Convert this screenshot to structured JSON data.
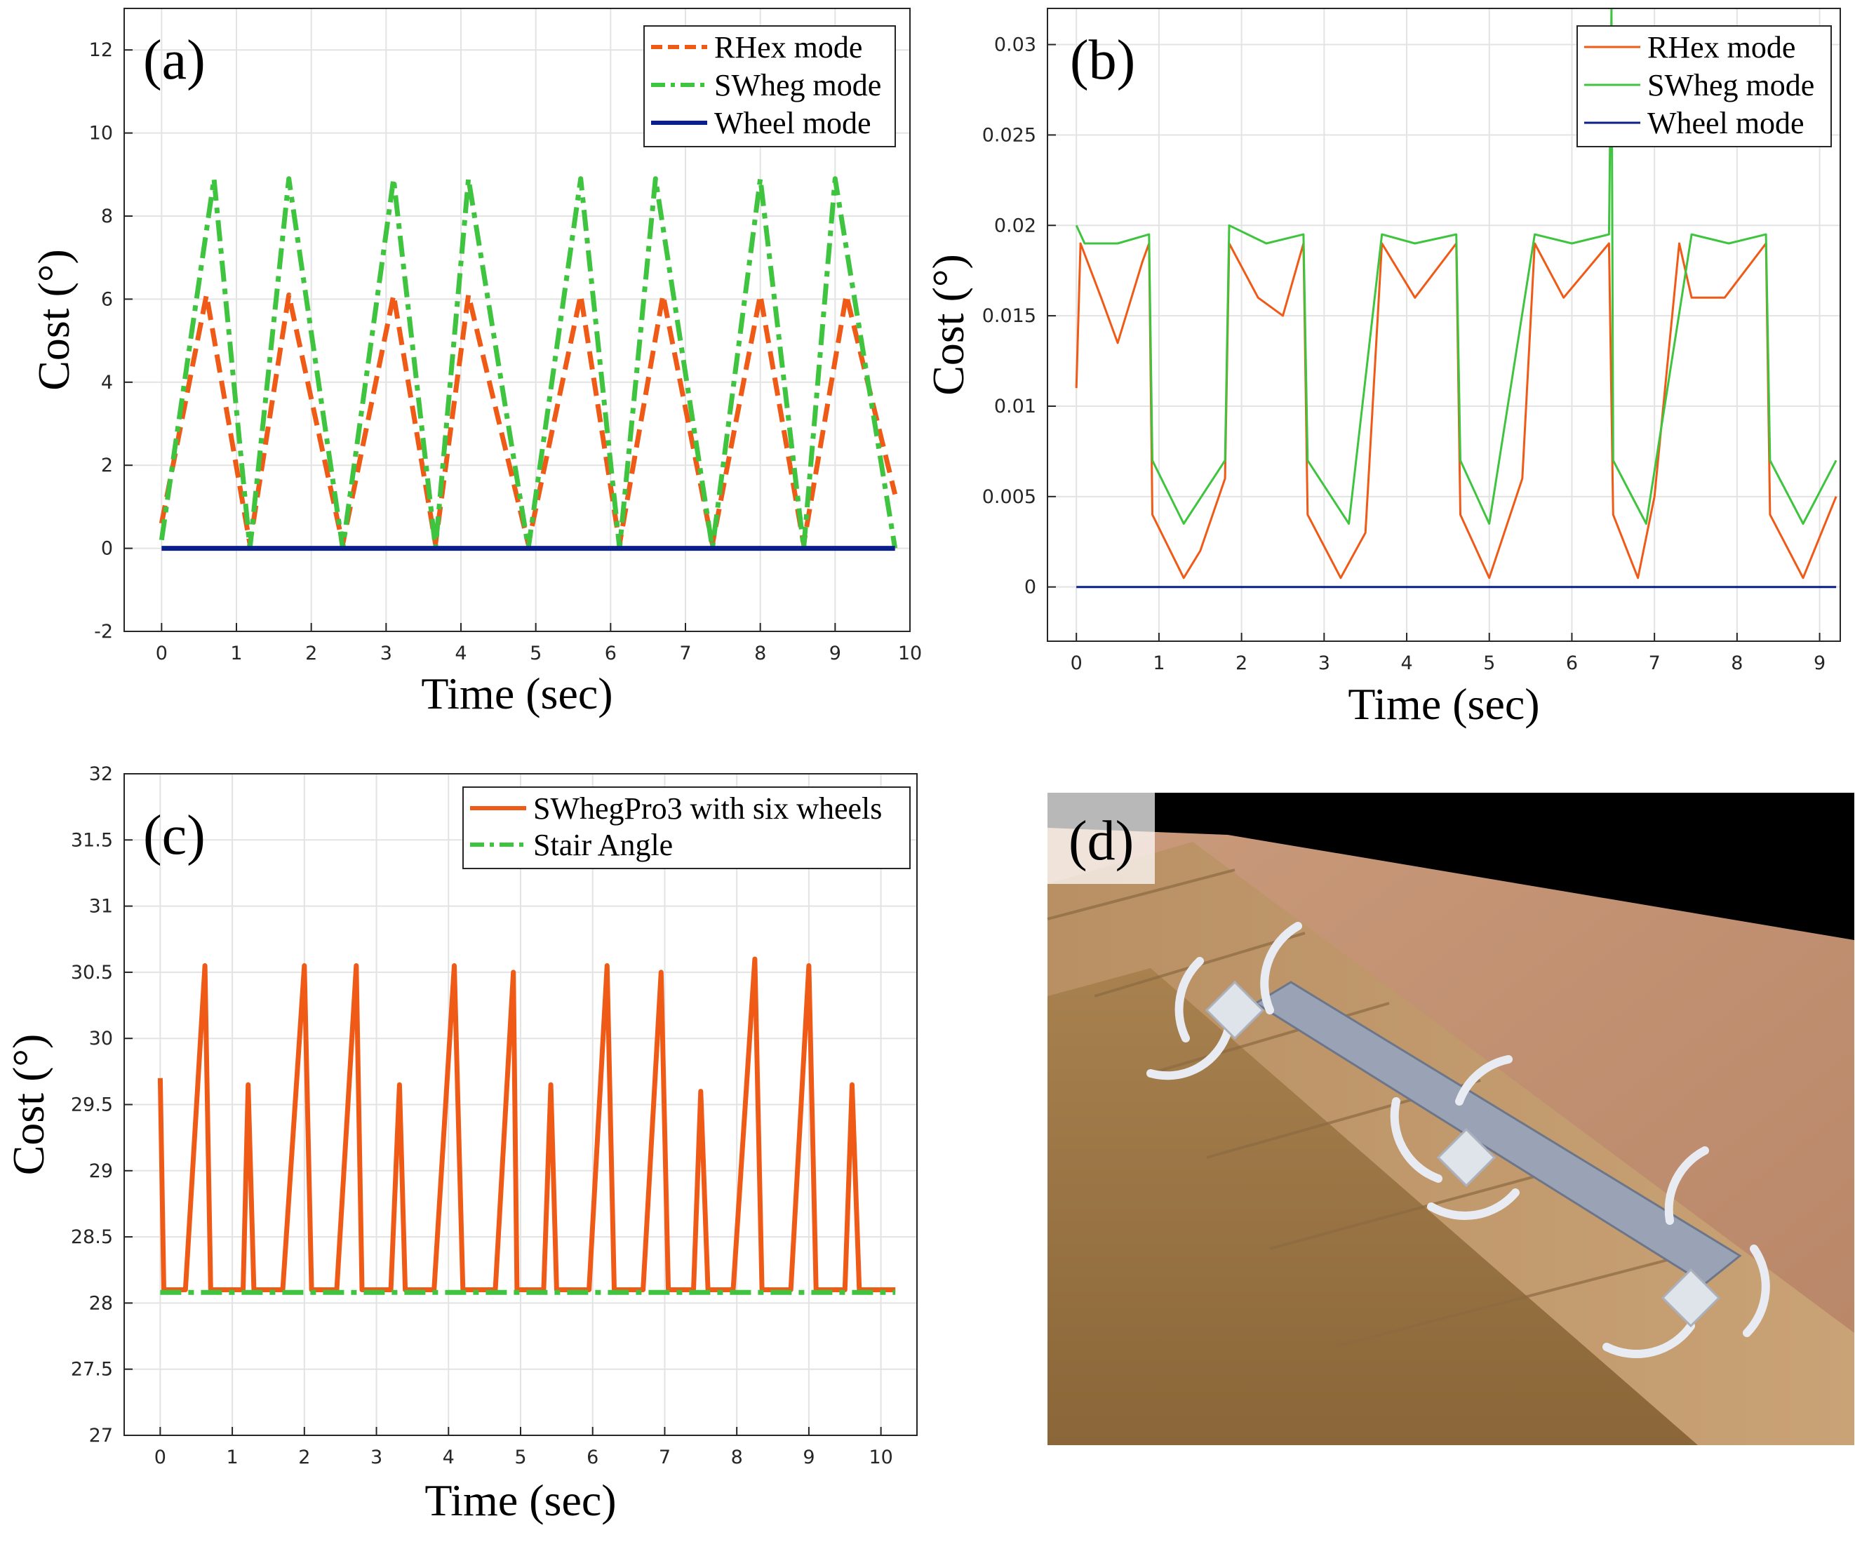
{
  "chart_data": [
    {
      "type": "line",
      "panel_label": "(a)",
      "xlabel": "Time (sec)",
      "ylabel": "Cost (°)",
      "xlim": [
        -0.5,
        10
      ],
      "ylim": [
        -2,
        13
      ],
      "xticks": [
        0,
        1,
        2,
        3,
        4,
        5,
        6,
        7,
        8,
        9,
        10
      ],
      "yticks": [
        -2,
        0,
        2,
        4,
        6,
        8,
        10,
        12
      ],
      "grid": true,
      "legend_position": "top-right",
      "series": [
        {
          "name": "RHex mode",
          "color": "#f05a17",
          "style": "dashed",
          "x": [
            0,
            0.6,
            1.18,
            1.7,
            2.42,
            3.1,
            3.66,
            4.1,
            4.9,
            5.6,
            6.12,
            6.7,
            7.36,
            8.0,
            8.58,
            9.15,
            9.8
          ],
          "y": [
            0.6,
            6.1,
            0.1,
            6.1,
            0.1,
            6.1,
            0.1,
            6.1,
            0.1,
            6.1,
            0.1,
            6.1,
            0.1,
            6.1,
            0.1,
            6.1,
            1.3
          ]
        },
        {
          "name": "SWheg mode",
          "color": "#3ec43e",
          "style": "dashdot",
          "x": [
            0,
            0.7,
            1.18,
            1.7,
            2.42,
            3.1,
            3.66,
            4.1,
            4.9,
            5.6,
            6.12,
            6.6,
            7.36,
            8.0,
            8.58,
            9.0,
            9.8
          ],
          "y": [
            0.2,
            8.9,
            0,
            8.9,
            0,
            8.9,
            0,
            8.9,
            0,
            8.9,
            0,
            8.9,
            0,
            8.9,
            0,
            8.9,
            0
          ]
        },
        {
          "name": "Wheel mode",
          "color": "#0b1f8c",
          "style": "solid",
          "x": [
            0,
            9.8
          ],
          "y": [
            0,
            0
          ]
        }
      ]
    },
    {
      "type": "line",
      "panel_label": "(b)",
      "xlabel": "Time (sec)",
      "ylabel": "Cost (°)",
      "xlim": [
        -0.35,
        9.25
      ],
      "ylim": [
        -0.003,
        0.032
      ],
      "xticks": [
        0,
        1,
        2,
        3,
        4,
        5,
        6,
        7,
        8,
        9
      ],
      "yticks": [
        0,
        0.005,
        0.01,
        0.015,
        0.02,
        0.025,
        0.03
      ],
      "grid": true,
      "legend_position": "top-right",
      "series": [
        {
          "name": "RHex mode",
          "color": "#f05a17",
          "style": "solid",
          "x": [
            0,
            0.05,
            0.3,
            0.5,
            0.8,
            0.88,
            0.92,
            1.3,
            1.5,
            1.8,
            1.85,
            2.2,
            2.5,
            2.75,
            2.8,
            3.2,
            3.5,
            3.7,
            4.1,
            4.6,
            4.65,
            5.0,
            5.4,
            5.55,
            5.9,
            6.45,
            6.5,
            6.8,
            7.0,
            7.3,
            7.45,
            7.85,
            8.35,
            8.4,
            8.8,
            9.2
          ],
          "y": [
            0.011,
            0.019,
            0.016,
            0.0135,
            0.018,
            0.019,
            0.004,
            0.0005,
            0.002,
            0.006,
            0.019,
            0.016,
            0.015,
            0.019,
            0.004,
            0.0005,
            0.003,
            0.019,
            0.016,
            0.019,
            0.004,
            0.0005,
            0.006,
            0.019,
            0.016,
            0.019,
            0.004,
            0.0005,
            0.005,
            0.019,
            0.016,
            0.016,
            0.019,
            0.004,
            0.0005,
            0.005
          ]
        },
        {
          "name": "SWheg mode",
          "color": "#3ec43e",
          "style": "solid",
          "x": [
            0,
            0.1,
            0.5,
            0.88,
            0.92,
            1.3,
            1.8,
            1.85,
            2.3,
            2.75,
            2.8,
            3.3,
            3.7,
            4.1,
            4.6,
            4.65,
            5.0,
            5.55,
            6.0,
            6.45,
            6.48,
            6.5,
            6.9,
            7.45,
            7.9,
            8.35,
            8.4,
            8.8,
            9.2
          ],
          "y": [
            0.02,
            0.019,
            0.019,
            0.0195,
            0.007,
            0.0035,
            0.007,
            0.02,
            0.019,
            0.0195,
            0.007,
            0.0035,
            0.0195,
            0.019,
            0.0195,
            0.007,
            0.0035,
            0.0195,
            0.019,
            0.0195,
            0.032,
            0.007,
            0.0035,
            0.0195,
            0.019,
            0.0195,
            0.007,
            0.0035,
            0.007
          ]
        },
        {
          "name": "Wheel mode",
          "color": "#0b1f8c",
          "style": "solid",
          "x": [
            0,
            9.2
          ],
          "y": [
            0,
            0
          ]
        }
      ]
    },
    {
      "type": "line",
      "panel_label": "(c)",
      "xlabel": "Time (sec)",
      "ylabel": "Cost (°)",
      "xlim": [
        -0.5,
        10.5
      ],
      "ylim": [
        27,
        32
      ],
      "xticks": [
        0,
        1,
        2,
        3,
        4,
        5,
        6,
        7,
        8,
        9,
        10
      ],
      "yticks": [
        27,
        27.5,
        28,
        28.5,
        29,
        29.5,
        30,
        30.5,
        31,
        31.5,
        32
      ],
      "grid": true,
      "legend_position": "top-right",
      "series": [
        {
          "name": "SWhegPro3 with six wheels",
          "color": "#f05a17",
          "style": "solid",
          "x": [
            0,
            0.05,
            0.35,
            0.62,
            0.7,
            0.8,
            1.15,
            1.22,
            1.3,
            1.7,
            2.0,
            2.1,
            2.45,
            2.72,
            2.8,
            3.2,
            3.32,
            3.4,
            3.8,
            4.08,
            4.2,
            4.65,
            4.9,
            4.95,
            5.32,
            5.42,
            5.5,
            5.95,
            6.2,
            6.3,
            6.7,
            6.95,
            7.05,
            7.4,
            7.5,
            7.6,
            7.95,
            8.25,
            8.35,
            8.75,
            9.0,
            9.1,
            9.5,
            9.6,
            9.7,
            10.2
          ],
          "y": [
            29.7,
            28.1,
            28.1,
            30.55,
            28.1,
            28.1,
            28.1,
            29.65,
            28.1,
            28.1,
            30.55,
            28.1,
            28.1,
            30.55,
            28.1,
            28.1,
            29.65,
            28.1,
            28.1,
            30.55,
            28.1,
            28.1,
            30.5,
            28.1,
            28.1,
            29.65,
            28.1,
            28.1,
            30.55,
            28.1,
            28.1,
            30.5,
            28.1,
            28.1,
            29.6,
            28.1,
            28.1,
            30.6,
            28.1,
            28.1,
            30.55,
            28.1,
            28.1,
            29.65,
            28.1,
            28.1
          ]
        },
        {
          "name": "Stair Angle",
          "color": "#3ec43e",
          "style": "dashdot",
          "x": [
            0,
            10.2
          ],
          "y": [
            28.08,
            28.08
          ]
        }
      ]
    }
  ],
  "panel_d": {
    "label": "(d)"
  }
}
